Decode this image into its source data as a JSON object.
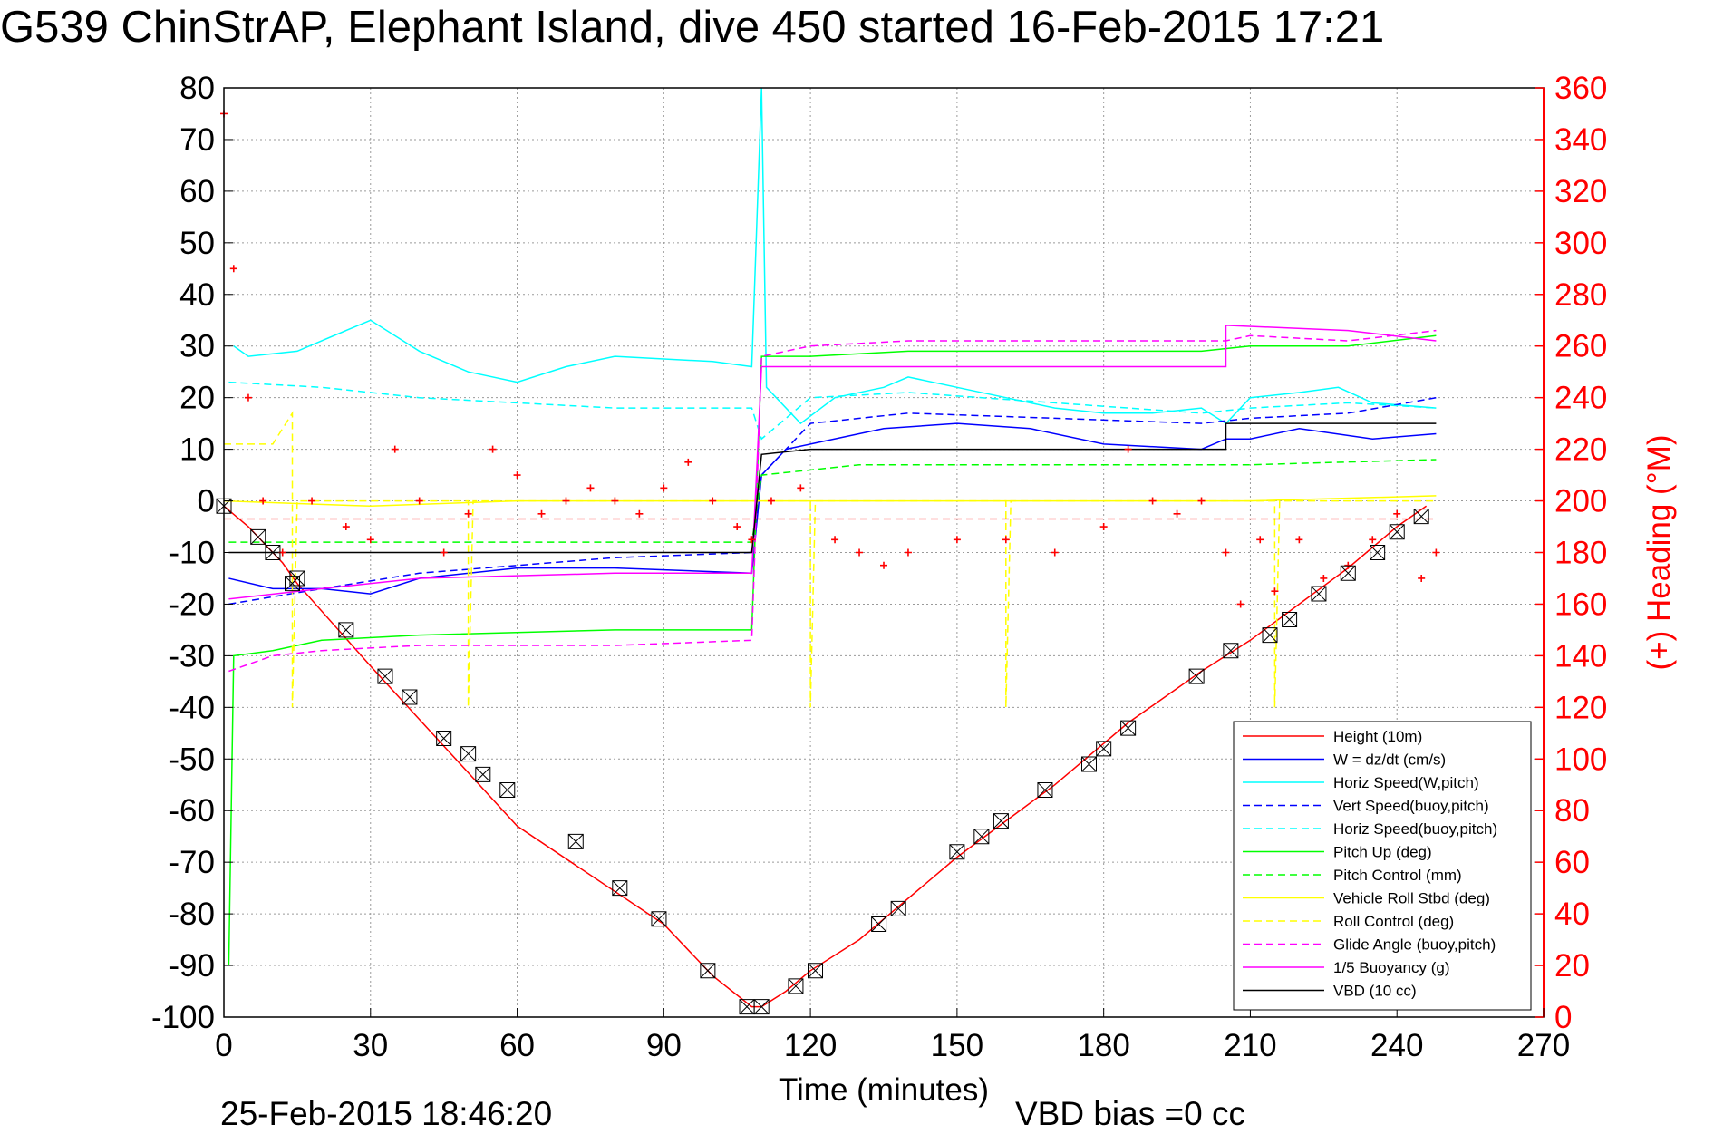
{
  "page": {
    "title": "G539 ChinStrAP, Elephant Island, dive 450 started 16-Feb-2015 17:21",
    "plot_date": "25-Feb-2015 18:46:20",
    "vbd_bias": "VBD bias =0 cc"
  },
  "chart_data": {
    "type": "line",
    "title": "G539 ChinStrAP, Elephant Island, dive 450 started 16-Feb-2015 17:21",
    "xlabel": "Time (minutes)",
    "ylabel": "",
    "y2label": "(+) Heading (°M)",
    "xlim": [
      0,
      270
    ],
    "ylim": [
      -100,
      80
    ],
    "y2lim": [
      0,
      360
    ],
    "xticks": [
      "0",
      "30",
      "60",
      "90",
      "120",
      "150",
      "180",
      "210",
      "240",
      "270"
    ],
    "yticks": [
      "80",
      "70",
      "60",
      "50",
      "40",
      "30",
      "20",
      "10",
      "0",
      "-10",
      "-20",
      "-30",
      "-40",
      "-50",
      "-60",
      "-70",
      "-80",
      "-90",
      "-100"
    ],
    "y2ticks": [
      "360",
      "340",
      "320",
      "300",
      "280",
      "260",
      "240",
      "220",
      "200",
      "180",
      "160",
      "140",
      "120",
      "100",
      "80",
      "60",
      "40",
      "20",
      "0"
    ],
    "grid": true,
    "legend_position": "bottom-right",
    "colors": {
      "red": "#ff0000",
      "blue": "#0000ff",
      "cyan": "#00ffff",
      "green": "#00ff00",
      "yellow": "#ffff00",
      "magenta": "#ff00ff",
      "black": "#000000",
      "grid": "#9a9a9a"
    },
    "legend": [
      {
        "label": "Height (10m)",
        "color": "#ff0000",
        "dash": false
      },
      {
        "label": "W = dz/dt (cm/s)",
        "color": "#0000ff",
        "dash": false
      },
      {
        "label": "Horiz Speed(W,pitch)",
        "color": "#00ffff",
        "dash": false
      },
      {
        "label": "Vert Speed(buoy,pitch)",
        "color": "#0000ff",
        "dash": true
      },
      {
        "label": "Horiz Speed(buoy,pitch)",
        "color": "#00ffff",
        "dash": true
      },
      {
        "label": "Pitch Up (deg)",
        "color": "#00ff00",
        "dash": false
      },
      {
        "label": "Pitch Control (mm)",
        "color": "#00ff00",
        "dash": true
      },
      {
        "label": "Vehicle Roll Stbd (deg)",
        "color": "#ffff00",
        "dash": false
      },
      {
        "label": "Roll Control (deg)",
        "color": "#ffff00",
        "dash": true
      },
      {
        "label": "Glide Angle (buoy,pitch)",
        "color": "#ff00ff",
        "dash": true
      },
      {
        "label": "1/5 Buoyancy (g)",
        "color": "#ff00ff",
        "dash": false
      },
      {
        "label": "VBD (10 cc)",
        "color": "#000000",
        "dash": false
      }
    ],
    "series": [
      {
        "name": "Height (10m)",
        "color": "#ff0000",
        "dash": false,
        "points": [
          [
            0,
            -1
          ],
          [
            5,
            -5
          ],
          [
            12,
            -12
          ],
          [
            15,
            -16
          ],
          [
            30,
            -32
          ],
          [
            60,
            -63
          ],
          [
            90,
            -82
          ],
          [
            100,
            -92
          ],
          [
            108,
            -98
          ],
          [
            110,
            -98
          ],
          [
            115,
            -95
          ],
          [
            120,
            -91
          ],
          [
            130,
            -85
          ],
          [
            150,
            -69
          ],
          [
            160,
            -62
          ],
          [
            170,
            -55
          ],
          [
            185,
            -43
          ],
          [
            200,
            -33
          ],
          [
            210,
            -27
          ],
          [
            220,
            -20
          ],
          [
            230,
            -13
          ],
          [
            240,
            -5
          ],
          [
            246,
            -1
          ]
        ]
      },
      {
        "name": "W = dz/dt (cm/s)",
        "color": "#0000ff",
        "dash": false,
        "points": [
          [
            1,
            -15
          ],
          [
            10,
            -17
          ],
          [
            20,
            -17
          ],
          [
            30,
            -18
          ],
          [
            40,
            -15
          ],
          [
            60,
            -13
          ],
          [
            80,
            -13
          ],
          [
            108,
            -14
          ],
          [
            110,
            5
          ],
          [
            115,
            10
          ],
          [
            120,
            11
          ],
          [
            135,
            14
          ],
          [
            150,
            15
          ],
          [
            165,
            14
          ],
          [
            180,
            11
          ],
          [
            200,
            10
          ],
          [
            205,
            12
          ],
          [
            210,
            12
          ],
          [
            220,
            14
          ],
          [
            235,
            12
          ],
          [
            248,
            13
          ]
        ]
      },
      {
        "name": "Horiz Speed(W,pitch)",
        "color": "#00ffff",
        "dash": false,
        "points": [
          [
            2,
            30
          ],
          [
            5,
            28
          ],
          [
            15,
            29
          ],
          [
            25,
            33
          ],
          [
            30,
            35
          ],
          [
            40,
            29
          ],
          [
            50,
            25
          ],
          [
            60,
            23
          ],
          [
            70,
            26
          ],
          [
            80,
            28
          ],
          [
            100,
            27
          ],
          [
            108,
            26
          ],
          [
            110,
            80
          ],
          [
            111,
            22
          ],
          [
            118,
            15
          ],
          [
            125,
            20
          ],
          [
            135,
            22
          ],
          [
            140,
            24
          ],
          [
            150,
            22
          ],
          [
            160,
            20
          ],
          [
            170,
            18
          ],
          [
            180,
            17
          ],
          [
            190,
            17
          ],
          [
            200,
            18
          ],
          [
            205,
            15
          ],
          [
            210,
            20
          ],
          [
            220,
            21
          ],
          [
            228,
            22
          ],
          [
            235,
            19
          ],
          [
            248,
            18
          ]
        ]
      },
      {
        "name": "Vert Speed(buoy,pitch)",
        "color": "#0000ff",
        "dash": true,
        "points": [
          [
            1,
            -20
          ],
          [
            20,
            -17
          ],
          [
            40,
            -14
          ],
          [
            80,
            -11
          ],
          [
            108,
            -10
          ],
          [
            110,
            5
          ],
          [
            120,
            15
          ],
          [
            140,
            17
          ],
          [
            170,
            16
          ],
          [
            200,
            15
          ],
          [
            210,
            16
          ],
          [
            230,
            17
          ],
          [
            248,
            20
          ]
        ]
      },
      {
        "name": "Horiz Speed(buoy,pitch)",
        "color": "#00ffff",
        "dash": true,
        "points": [
          [
            1,
            23
          ],
          [
            20,
            22
          ],
          [
            40,
            20
          ],
          [
            80,
            18
          ],
          [
            108,
            18
          ],
          [
            110,
            12
          ],
          [
            120,
            20
          ],
          [
            140,
            21
          ],
          [
            170,
            19
          ],
          [
            200,
            17
          ],
          [
            210,
            18
          ],
          [
            230,
            19
          ],
          [
            248,
            18
          ]
        ]
      },
      {
        "name": "Pitch Up (deg)",
        "color": "#00ff00",
        "dash": false,
        "points": [
          [
            1,
            -90
          ],
          [
            2,
            -30
          ],
          [
            10,
            -29
          ],
          [
            20,
            -27
          ],
          [
            40,
            -26
          ],
          [
            80,
            -25
          ],
          [
            108,
            -25
          ],
          [
            110,
            28
          ],
          [
            120,
            28
          ],
          [
            140,
            29
          ],
          [
            160,
            29
          ],
          [
            180,
            29
          ],
          [
            200,
            29
          ],
          [
            210,
            30
          ],
          [
            230,
            30
          ],
          [
            248,
            32
          ]
        ]
      },
      {
        "name": "Pitch Control (mm)",
        "color": "#00ff00",
        "dash": true,
        "points": [
          [
            1,
            -8
          ],
          [
            50,
            -8
          ],
          [
            108,
            -8
          ],
          [
            110,
            5
          ],
          [
            130,
            7
          ],
          [
            170,
            7
          ],
          [
            210,
            7
          ],
          [
            248,
            8
          ]
        ]
      },
      {
        "name": "Vehicle Roll Stbd (deg)",
        "color": "#ffff00",
        "dash": false,
        "points": [
          [
            0,
            0
          ],
          [
            30,
            -1
          ],
          [
            60,
            0
          ],
          [
            90,
            0
          ],
          [
            120,
            0
          ],
          [
            150,
            0
          ],
          [
            180,
            0
          ],
          [
            210,
            0
          ],
          [
            248,
            1
          ]
        ]
      },
      {
        "name": "Roll Control (deg)",
        "color": "#ffff00",
        "dash": true,
        "points": [
          [
            0,
            11
          ],
          [
            10,
            11
          ],
          [
            14,
            17
          ],
          [
            14,
            -40
          ],
          [
            15,
            0
          ],
          [
            50,
            0
          ],
          [
            50,
            -40
          ],
          [
            51,
            0
          ],
          [
            120,
            0
          ],
          [
            120,
            -40
          ],
          [
            121,
            0
          ],
          [
            160,
            0
          ],
          [
            160,
            -40
          ],
          [
            161,
            0
          ],
          [
            215,
            0
          ],
          [
            215,
            -40
          ],
          [
            216,
            0
          ],
          [
            248,
            0
          ]
        ]
      },
      {
        "name": "Glide Angle (buoy,pitch)",
        "color": "#ff00ff",
        "dash": true,
        "points": [
          [
            1,
            -33
          ],
          [
            10,
            -30
          ],
          [
            20,
            -29
          ],
          [
            40,
            -28
          ],
          [
            80,
            -28
          ],
          [
            108,
            -27
          ],
          [
            110,
            28
          ],
          [
            120,
            30
          ],
          [
            140,
            31
          ],
          [
            160,
            31
          ],
          [
            180,
            31
          ],
          [
            205,
            31
          ],
          [
            210,
            32
          ],
          [
            230,
            31
          ],
          [
            248,
            33
          ]
        ]
      },
      {
        "name": "1/5 Buoyancy (g)",
        "color": "#ff00ff",
        "dash": false,
        "points": [
          [
            1,
            -19
          ],
          [
            20,
            -17
          ],
          [
            40,
            -15
          ],
          [
            80,
            -14
          ],
          [
            108,
            -14
          ],
          [
            110,
            26
          ],
          [
            120,
            26
          ],
          [
            150,
            26
          ],
          [
            180,
            26
          ],
          [
            205,
            26
          ],
          [
            205,
            34
          ],
          [
            230,
            33
          ],
          [
            248,
            31
          ]
        ]
      },
      {
        "name": "VBD (10 cc)",
        "color": "#000000",
        "dash": false,
        "points": [
          [
            1,
            -10
          ],
          [
            20,
            -10
          ],
          [
            60,
            -10
          ],
          [
            108,
            -10
          ],
          [
            110,
            9
          ],
          [
            120,
            10
          ],
          [
            150,
            10
          ],
          [
            180,
            10
          ],
          [
            205,
            10
          ],
          [
            205,
            15
          ],
          [
            230,
            15
          ],
          [
            248,
            15
          ]
        ]
      }
    ],
    "heading": {
      "name": "(+) Heading (°M)",
      "color": "#ff0000",
      "axis": "right",
      "points": [
        [
          0,
          350
        ],
        [
          2,
          290
        ],
        [
          5,
          240
        ],
        [
          8,
          200
        ],
        [
          12,
          180
        ],
        [
          18,
          200
        ],
        [
          25,
          190
        ],
        [
          30,
          185
        ],
        [
          35,
          220
        ],
        [
          40,
          200
        ],
        [
          45,
          180
        ],
        [
          50,
          195
        ],
        [
          55,
          220
        ],
        [
          60,
          210
        ],
        [
          65,
          195
        ],
        [
          70,
          200
        ],
        [
          75,
          205
        ],
        [
          80,
          200
        ],
        [
          85,
          195
        ],
        [
          90,
          205
        ],
        [
          95,
          215
        ],
        [
          100,
          200
        ],
        [
          105,
          190
        ],
        [
          108,
          185
        ],
        [
          112,
          200
        ],
        [
          118,
          205
        ],
        [
          125,
          185
        ],
        [
          130,
          180
        ],
        [
          135,
          175
        ],
        [
          140,
          180
        ],
        [
          150,
          185
        ],
        [
          160,
          185
        ],
        [
          170,
          180
        ],
        [
          180,
          190
        ],
        [
          185,
          220
        ],
        [
          190,
          200
        ],
        [
          195,
          195
        ],
        [
          200,
          200
        ],
        [
          205,
          180
        ],
        [
          208,
          160
        ],
        [
          212,
          185
        ],
        [
          215,
          165
        ],
        [
          220,
          185
        ],
        [
          225,
          170
        ],
        [
          230,
          175
        ],
        [
          235,
          185
        ],
        [
          240,
          195
        ],
        [
          245,
          170
        ],
        [
          248,
          180
        ]
      ]
    },
    "markers": {
      "name": "Height sample markers",
      "points": [
        [
          0,
          -1
        ],
        [
          7,
          -7
        ],
        [
          10,
          -10
        ],
        [
          14,
          -16
        ],
        [
          15,
          -15
        ],
        [
          25,
          -25
        ],
        [
          33,
          -34
        ],
        [
          38,
          -38
        ],
        [
          45,
          -46
        ],
        [
          50,
          -49
        ],
        [
          53,
          -53
        ],
        [
          58,
          -56
        ],
        [
          72,
          -66
        ],
        [
          81,
          -75
        ],
        [
          89,
          -81
        ],
        [
          99,
          -91
        ],
        [
          107,
          -98
        ],
        [
          110,
          -98
        ],
        [
          117,
          -94
        ],
        [
          121,
          -91
        ],
        [
          134,
          -82
        ],
        [
          138,
          -79
        ],
        [
          150,
          -68
        ],
        [
          155,
          -65
        ],
        [
          159,
          -62
        ],
        [
          168,
          -56
        ],
        [
          177,
          -51
        ],
        [
          180,
          -48
        ],
        [
          185,
          -44
        ],
        [
          199,
          -34
        ],
        [
          206,
          -29
        ],
        [
          214,
          -26
        ],
        [
          218,
          -23
        ],
        [
          224,
          -18
        ],
        [
          230,
          -14
        ],
        [
          236,
          -10
        ],
        [
          240,
          -6
        ],
        [
          245,
          -3
        ]
      ]
    }
  }
}
